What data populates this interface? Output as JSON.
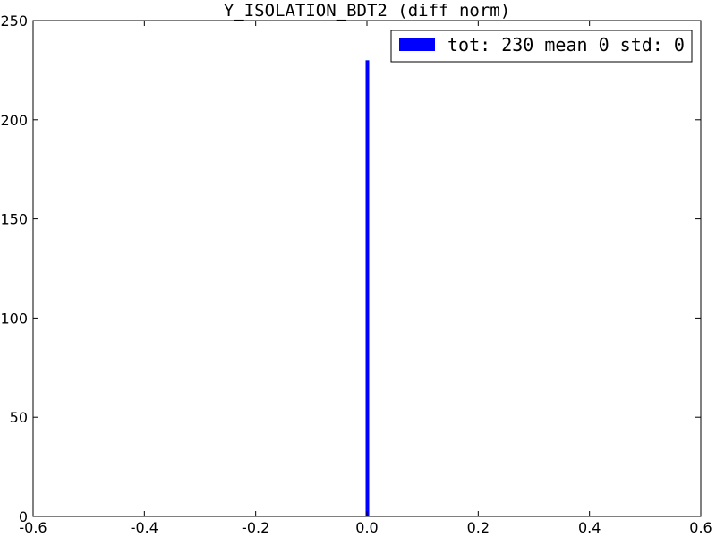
{
  "chart_data": {
    "type": "bar",
    "title": "Y_ISOLATION_BDT2 (diff norm)",
    "xlabel": "",
    "ylabel": "",
    "xlim": [
      -0.6,
      0.6
    ],
    "ylim": [
      0,
      250
    ],
    "x_ticks": [
      "-0.6",
      "-0.4",
      "-0.2",
      "0.0",
      "0.2",
      "0.4",
      "0.6"
    ],
    "y_ticks": [
      "0",
      "50",
      "100",
      "150",
      "200",
      "250"
    ],
    "bin_range": [
      -0.5,
      0.5
    ],
    "bars": [
      {
        "x": 0.0,
        "value": 230
      }
    ],
    "series": [
      {
        "name": "tot: 230 mean 0 std: 0",
        "color": "#0000ff"
      }
    ],
    "legend_position": "top-right",
    "grid": false
  }
}
